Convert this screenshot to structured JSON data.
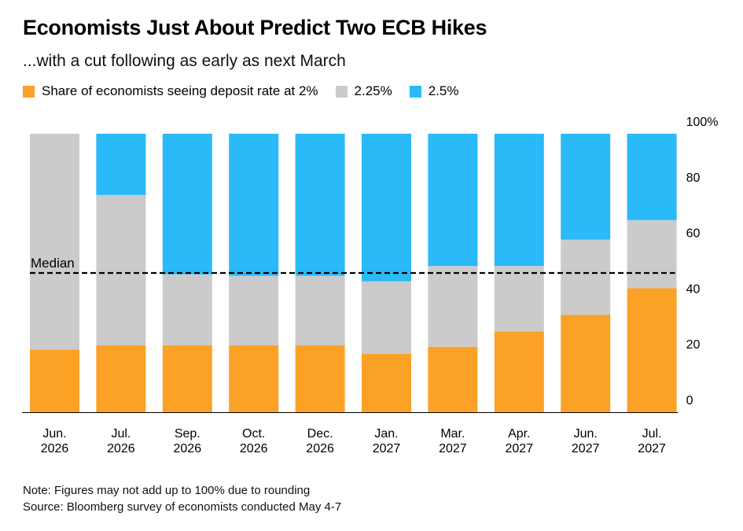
{
  "title": "Economists Just About Predict Two ECB Hikes",
  "subtitle": "...with a cut following as early as next March",
  "legend": [
    {
      "label": "Share of economists seeing deposit rate at 2%",
      "color": "#fba125"
    },
    {
      "label": "2.25%",
      "color": "#cbcbcb"
    },
    {
      "label": "2.5%",
      "color": "#29baf7"
    }
  ],
  "notes": {
    "note": "Note: Figures may not add up to 100% due to rounding",
    "source": "Source: Bloomberg survey of economists conducted May 4-7"
  },
  "chart_data": {
    "type": "bar",
    "stacked": true,
    "categories": [
      [
        "Jun.",
        "2026"
      ],
      [
        "Jul.",
        "2026"
      ],
      [
        "Sep.",
        "2026"
      ],
      [
        "Oct.",
        "2026"
      ],
      [
        "Dec.",
        "2026"
      ],
      [
        "Jan.",
        "2027"
      ],
      [
        "Mar.",
        "2027"
      ],
      [
        "Apr.",
        "2027"
      ],
      [
        "Jun.",
        "2027"
      ],
      [
        "Jul.",
        "2027"
      ]
    ],
    "series": [
      {
        "name": "Share of economists seeing deposit rate at 2%",
        "color": "#fba125",
        "values": [
          22.5,
          24,
          24,
          24,
          24,
          21,
          23.5,
          29,
          35,
          44.5
        ]
      },
      {
        "name": "2.25%",
        "color": "#cbcbcb",
        "values": [
          77.5,
          54,
          25.5,
          25,
          25,
          26,
          29,
          23.5,
          27,
          24.5
        ]
      },
      {
        "name": "2.5%",
        "color": "#29baf7",
        "values": [
          0,
          22,
          50.5,
          51,
          51,
          53,
          47.5,
          47.5,
          38,
          31
        ]
      }
    ],
    "ylim": [
      0,
      100
    ],
    "yticks": [
      "0",
      "20",
      "40",
      "60",
      "80",
      "100%"
    ],
    "ytick_values": [
      0,
      20,
      40,
      60,
      80,
      100
    ],
    "y_axis_side": "right",
    "grid": false,
    "reference_line": {
      "label": "Median",
      "value": 50,
      "style": "dashed"
    }
  }
}
